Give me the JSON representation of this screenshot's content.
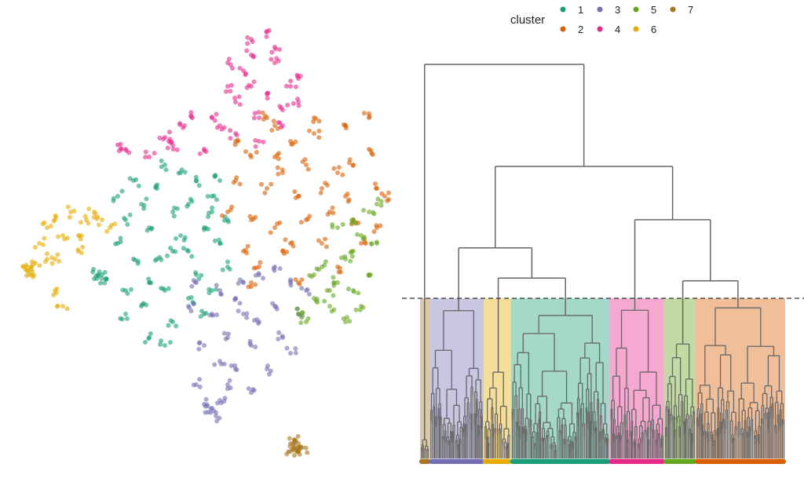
{
  "chart_data": [
    {
      "type": "scatter",
      "legend": {
        "title": "cluster",
        "placement": "top-right",
        "entries": [
          "1",
          "2",
          "3",
          "4",
          "5",
          "6",
          "7"
        ]
      },
      "colors": {
        "1": "#1B9E77",
        "2": "#D95F02",
        "3": "#7570B3",
        "4": "#E7298A",
        "5": "#66A61E",
        "6": "#E6AB02",
        "7": "#A6761D"
      },
      "axes_visible": false,
      "grid": false,
      "xlim": [
        -50,
        50
      ],
      "ylim": [
        -60,
        60
      ],
      "series": [
        {
          "cluster": "1",
          "points": [
            [
              -6,
              -4
            ],
            [
              -12,
              2
            ],
            [
              -2,
              8
            ],
            [
              4,
              10
            ],
            [
              -16,
              -6
            ],
            [
              -8,
              -14
            ],
            [
              0,
              -10
            ],
            [
              6,
              -2
            ],
            [
              -18,
              4
            ],
            [
              -10,
              12
            ],
            [
              -4,
              16
            ],
            [
              2,
              2
            ],
            [
              -14,
              -18
            ],
            [
              -6,
              -22
            ],
            [
              -8,
              -28
            ],
            [
              -12,
              -26
            ],
            [
              -24,
              -10
            ],
            [
              -25,
              -10
            ],
            [
              -26,
              -11
            ],
            [
              -23,
              -11
            ],
            [
              -18,
              -20
            ],
            [
              8,
              4
            ],
            [
              8,
              -8
            ],
            [
              -20,
              10
            ],
            [
              -2,
              -16
            ],
            [
              4,
              -14
            ],
            [
              -10,
              -6
            ],
            [
              -16,
              14
            ],
            [
              -6,
              6
            ],
            [
              0,
              14
            ],
            [
              -12,
              -12
            ],
            [
              -20,
              -2
            ],
            [
              2,
              -20
            ],
            [
              -4,
              0
            ],
            [
              -14,
              8
            ],
            [
              6,
              14
            ],
            [
              -8,
              18
            ],
            [
              -18,
              -14
            ],
            [
              -2,
              -4
            ],
            [
              4,
              6
            ]
          ]
        },
        {
          "cluster": "2",
          "points": [
            [
              26,
              10
            ],
            [
              14,
              20
            ],
            [
              20,
              28
            ],
            [
              30,
              30
            ],
            [
              38,
              28
            ],
            [
              44,
              22
            ],
            [
              46,
              12
            ],
            [
              40,
              4
            ],
            [
              32,
              -2
            ],
            [
              22,
              -4
            ],
            [
              14,
              4
            ],
            [
              10,
              14
            ],
            [
              18,
              12
            ],
            [
              28,
              18
            ],
            [
              36,
              16
            ],
            [
              34,
              6
            ],
            [
              24,
              24
            ],
            [
              16,
              -8
            ],
            [
              26,
              -12
            ],
            [
              12,
              -4
            ],
            [
              42,
              -2
            ],
            [
              48,
              10
            ],
            [
              20,
              2
            ],
            [
              30,
              26
            ],
            [
              40,
              18
            ],
            [
              22,
              16
            ],
            [
              10,
              24
            ],
            [
              36,
              -8
            ],
            [
              28,
              4
            ],
            [
              44,
              30
            ],
            [
              18,
              30
            ],
            [
              8,
              6
            ],
            [
              32,
              12
            ],
            [
              24,
              -2
            ],
            [
              46,
              2
            ],
            [
              14,
              -12
            ],
            [
              38,
              10
            ],
            [
              20,
              20
            ]
          ]
        },
        {
          "cluster": "3",
          "points": [
            [
              12,
              -20
            ],
            [
              6,
              -14
            ],
            [
              16,
              -10
            ],
            [
              24,
              -12
            ],
            [
              20,
              -18
            ],
            [
              4,
              -20
            ],
            [
              8,
              -26
            ],
            [
              14,
              -28
            ],
            [
              22,
              -26
            ],
            [
              0,
              -12
            ],
            [
              10,
              -34
            ],
            [
              8,
              -38
            ],
            [
              6,
              -42
            ],
            [
              4,
              -44
            ],
            [
              3,
              -45
            ],
            [
              5,
              -46
            ],
            [
              2,
              -43
            ],
            [
              18,
              -34
            ],
            [
              26,
              -20
            ],
            [
              -2,
              -18
            ],
            [
              12,
              -12
            ],
            [
              28,
              -14
            ],
            [
              16,
              -22
            ],
            [
              10,
              -16
            ],
            [
              20,
              -8
            ],
            [
              2,
              -28
            ],
            [
              14,
              -40
            ],
            [
              6,
              -32
            ],
            [
              24,
              -30
            ],
            [
              0,
              -38
            ]
          ]
        },
        {
          "cluster": "4",
          "points": [
            [
              14,
              38
            ],
            [
              8,
              44
            ],
            [
              14,
              50
            ],
            [
              18,
              52
            ],
            [
              20,
              44
            ],
            [
              24,
              38
            ],
            [
              26,
              34
            ],
            [
              10,
              34
            ],
            [
              6,
              28
            ],
            [
              16,
              30
            ],
            [
              22,
              28
            ],
            [
              12,
              42
            ],
            [
              18,
              36
            ],
            [
              8,
              38
            ],
            [
              20,
              48
            ],
            [
              4,
              30
            ],
            [
              -7,
              24
            ],
            [
              -8,
              25
            ],
            [
              -6,
              23
            ],
            [
              -3,
              28
            ],
            [
              -1,
              30
            ],
            [
              -18,
              22
            ],
            [
              -19,
              22
            ],
            [
              16,
              24
            ],
            [
              26,
              40
            ],
            [
              10,
              26
            ],
            [
              14,
              46
            ],
            [
              22,
              32
            ],
            [
              -12,
              20
            ],
            [
              2,
              22
            ]
          ]
        },
        {
          "cluster": "5",
          "points": [
            [
              38,
              -6
            ],
            [
              42,
              0
            ],
            [
              44,
              6
            ],
            [
              40,
              4
            ],
            [
              46,
              -2
            ],
            [
              36,
              -12
            ],
            [
              30,
              -16
            ],
            [
              26,
              -20
            ],
            [
              28,
              -22
            ],
            [
              34,
              -18
            ],
            [
              40,
              -14
            ],
            [
              44,
              -10
            ],
            [
              32,
              -8
            ],
            [
              36,
              2
            ],
            [
              42,
              -18
            ],
            [
              38,
              -22
            ],
            [
              30,
              -10
            ],
            [
              46,
              8
            ],
            [
              40,
              -4
            ],
            [
              34,
              -14
            ]
          ]
        },
        {
          "cluster": "6",
          "points": [
            [
              -36,
              4
            ],
            [
              -38,
              2
            ],
            [
              -34,
              0
            ],
            [
              -30,
              -4
            ],
            [
              -40,
              -2
            ],
            [
              -42,
              -8
            ],
            [
              -43,
              -9
            ],
            [
              -44,
              -8
            ],
            [
              -42,
              -10
            ],
            [
              -41,
              -7
            ],
            [
              -36,
              -6
            ],
            [
              -28,
              4
            ],
            [
              -26,
              6
            ],
            [
              -24,
              4
            ],
            [
              -22,
              2
            ],
            [
              -32,
              6
            ],
            [
              -36,
              -14
            ],
            [
              -34,
              -18
            ],
            [
              -38,
              -6
            ],
            [
              -30,
              0
            ]
          ]
        },
        {
          "cluster": "7",
          "points": [
            [
              25,
              -54
            ],
            [
              26,
              -53
            ],
            [
              24,
              -55
            ],
            [
              26,
              -55
            ],
            [
              25,
              -52
            ],
            [
              27,
              -54
            ],
            [
              24,
              -53
            ],
            [
              25,
              -56
            ]
          ]
        }
      ]
    },
    {
      "type": "dendrogram",
      "axes_visible": false,
      "cut_height": 0.411,
      "leaf_order_clusters": [
        "7",
        "3",
        "6",
        "1",
        "4",
        "5",
        "2"
      ],
      "cluster_share": {
        "7": 0.026,
        "3": 0.148,
        "6": 0.075,
        "1": 0.27,
        "4": 0.15,
        "5": 0.086,
        "2": 0.245
      },
      "cluster_top_heights": {
        "7": 0.055,
        "3": 0.38,
        "6": 0.225,
        "1": 0.368,
        "4": 0.381,
        "5": 0.296,
        "2": 0.387
      },
      "merges": [
        {
          "left": "7",
          "right": "A",
          "height": 1.0
        },
        {
          "id": "A",
          "left": "B",
          "right": "C",
          "height": 0.743
        },
        {
          "id": "B",
          "left": "3",
          "right": "D",
          "height": 0.538
        },
        {
          "id": "D",
          "left": "6",
          "right": "1",
          "height": 0.462
        },
        {
          "id": "C",
          "left": "4",
          "right": "E",
          "height": 0.609
        },
        {
          "id": "E",
          "left": "5",
          "right": "2",
          "height": 0.455
        }
      ]
    }
  ]
}
